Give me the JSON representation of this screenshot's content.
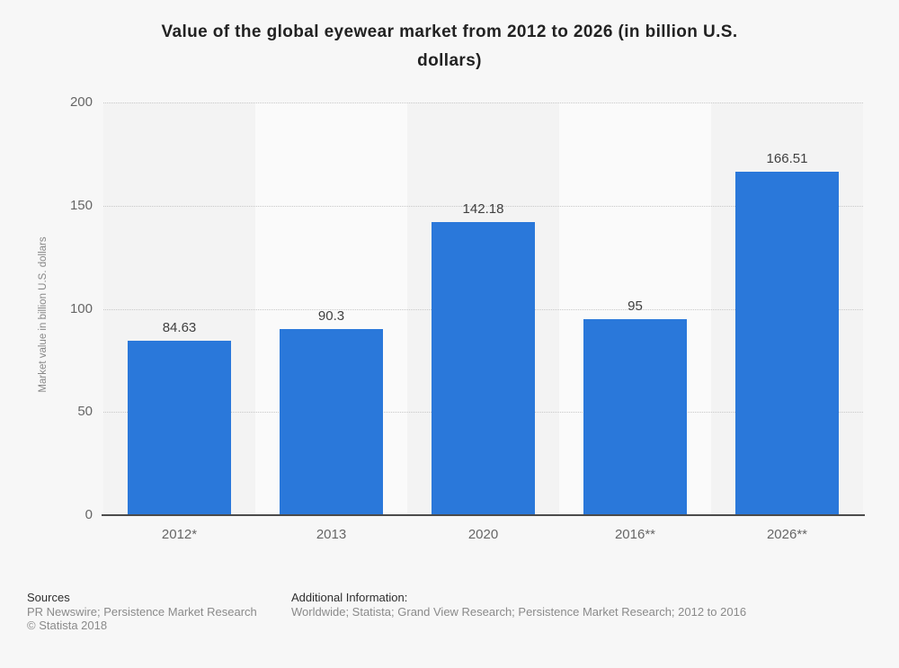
{
  "title": "Value of the global eyewear market from 2012 to 2026 (in billion U.S. dollars)",
  "title_lines": {
    "line1": "Value of the global eyewear market from 2012 to 2026 (in billion U.S.",
    "line2": "dollars)"
  },
  "chart_data": {
    "type": "bar",
    "categories": [
      "2012*",
      "2013",
      "2020",
      "2016**",
      "2026**"
    ],
    "values": [
      84.63,
      90.3,
      142.18,
      95,
      166.51
    ],
    "value_labels": [
      "84.63",
      "90.3",
      "142.18",
      "95",
      "166.51"
    ],
    "title": "Value of the global eyewear market from 2012 to 2026 (in billion U.S. dollars)",
    "xlabel": "",
    "ylabel": "Market value in billion U.S. dollars",
    "ylim": [
      0,
      200
    ],
    "yticks": [
      0,
      50,
      100,
      150,
      200
    ],
    "grid": "horizontal-dotted",
    "legend": "none",
    "bar_color": "#2a78da",
    "stripe_color_odd": "#f3f3f3",
    "stripe_color_even": "#fafafa"
  },
  "footer": {
    "sources_heading": "Sources",
    "sources_line1": "PR Newswire; Persistence Market Research",
    "sources_line2": "© Statista 2018",
    "additional_heading": "Additional Information:",
    "additional_line1": "Worldwide; Statista; Grand View Research; Persistence Market Research; 2012 to 2016"
  }
}
